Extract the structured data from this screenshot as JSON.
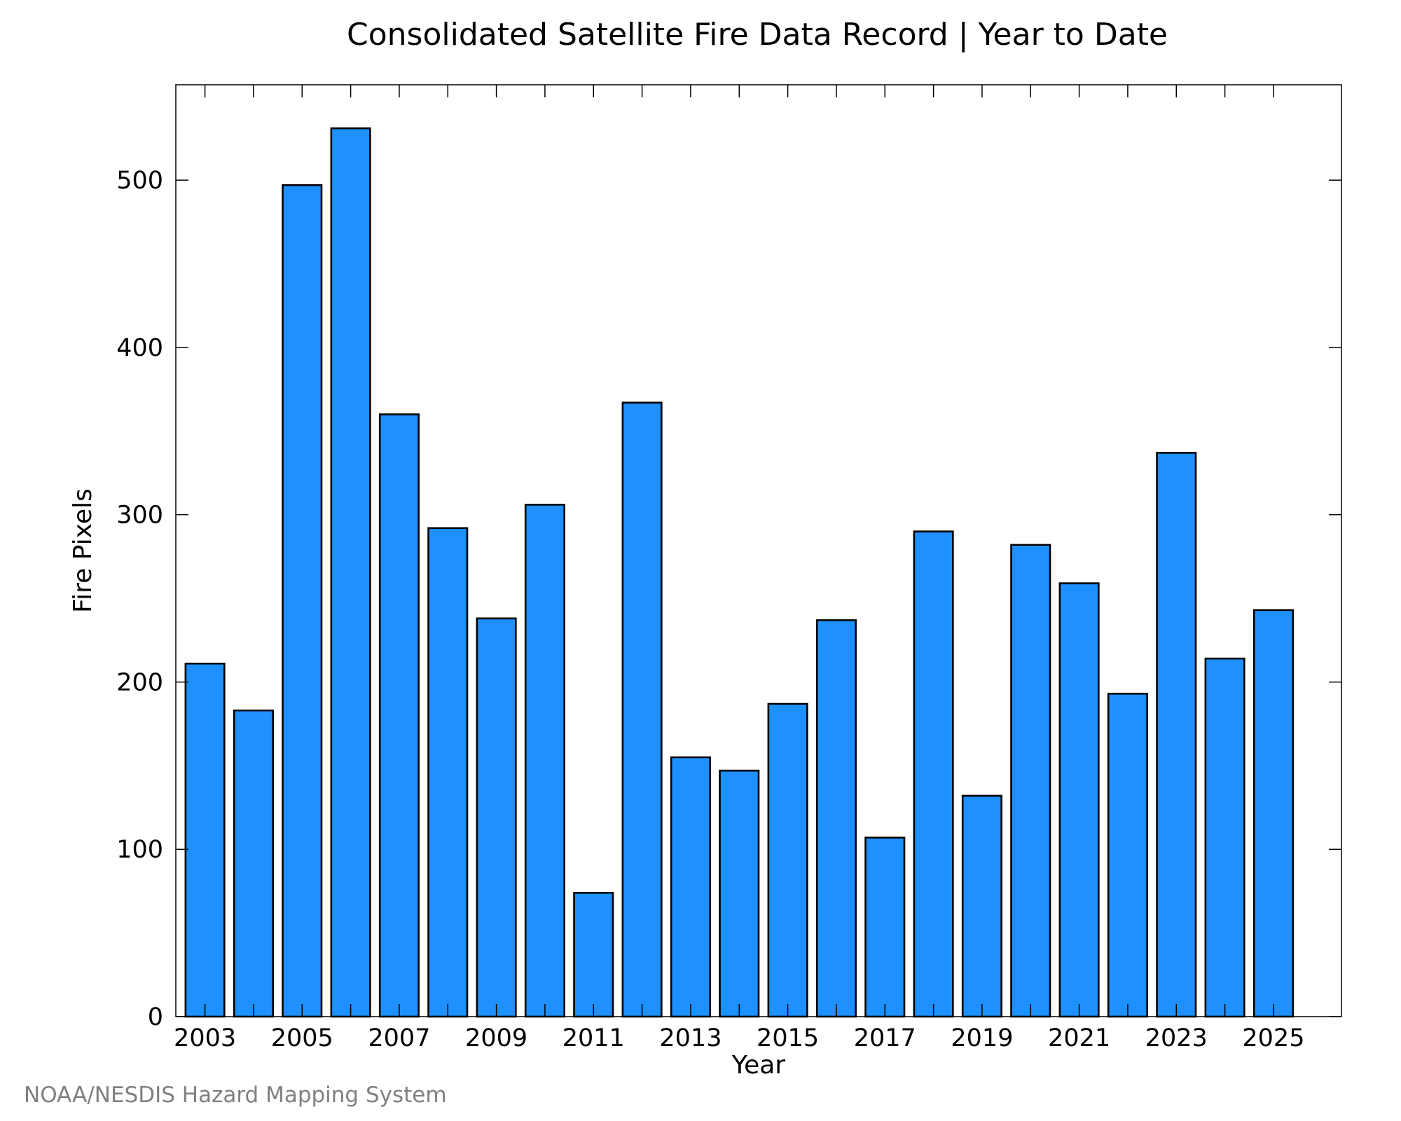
{
  "chart_data": {
    "type": "bar",
    "title": "Consolidated Satellite Fire Data Record | Year to Date",
    "xlabel": "Year",
    "ylabel": "Fire Pixels",
    "credit": "NOAA/NESDIS Hazard Mapping System",
    "bar_color": "#1e90ff",
    "categories": [
      2003,
      2004,
      2005,
      2006,
      2007,
      2008,
      2009,
      2010,
      2011,
      2012,
      2013,
      2014,
      2015,
      2016,
      2017,
      2018,
      2019,
      2020,
      2021,
      2022,
      2023,
      2024,
      2025
    ],
    "values": [
      211,
      183,
      497,
      531,
      360,
      292,
      238,
      306,
      74,
      367,
      155,
      147,
      187,
      237,
      107,
      290,
      132,
      282,
      259,
      193,
      337,
      214,
      243
    ],
    "x_tick_labels": [
      "2003",
      "2005",
      "2007",
      "2009",
      "2011",
      "2013",
      "2015",
      "2017",
      "2019",
      "2021",
      "2023",
      "2025"
    ],
    "y_tick_labels": [
      "0",
      "100",
      "200",
      "300",
      "400",
      "500"
    ],
    "ylim": [
      0,
      557
    ],
    "xlim": [
      2002.4,
      2026.4
    ],
    "grid": false,
    "legend": "none"
  }
}
